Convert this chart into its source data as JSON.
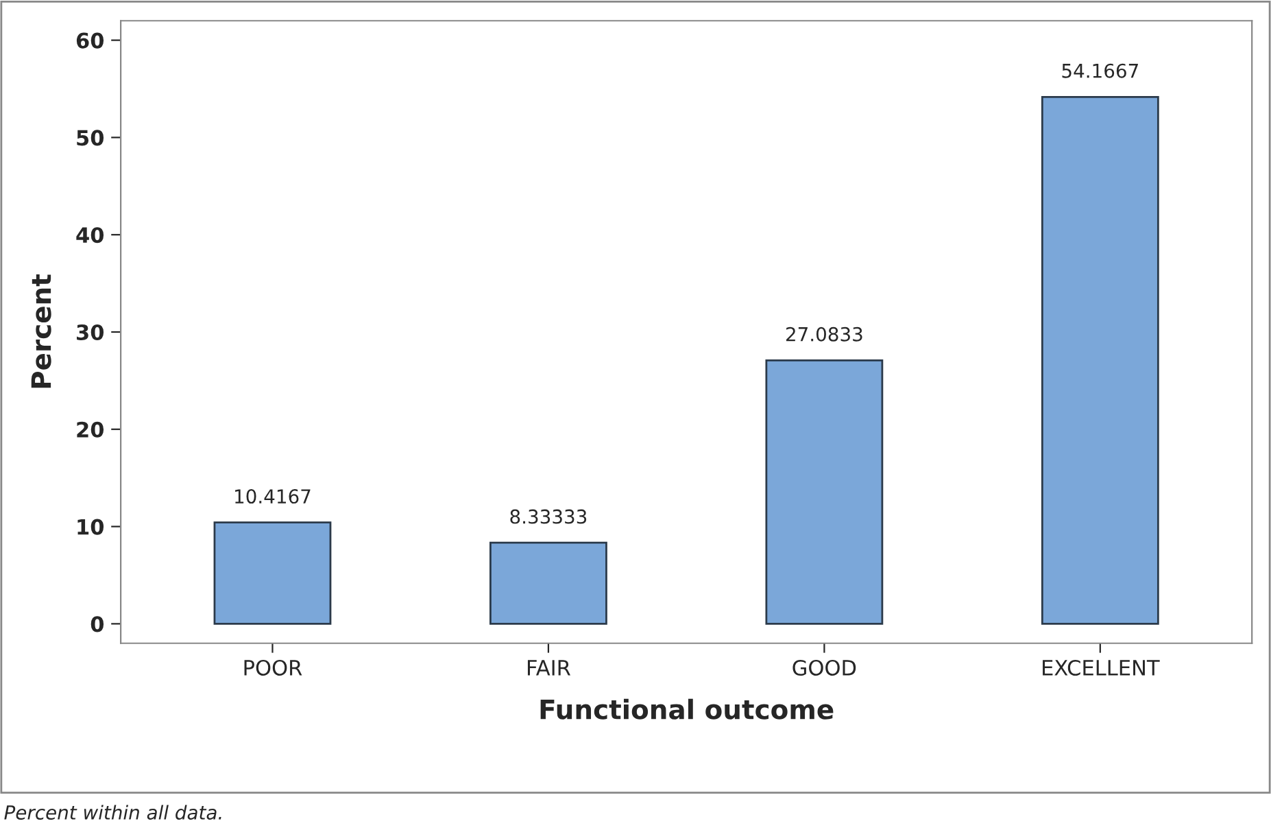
{
  "chart_data": {
    "type": "bar",
    "xlabel": "Functional outcome",
    "ylabel": "Percent",
    "categories": [
      "POOR",
      "FAIR",
      "GOOD",
      "EXCELLENT"
    ],
    "values": [
      10.4167,
      8.33333,
      27.0833,
      54.1667
    ],
    "color": "#7ba7d9",
    "ylim": [
      -2,
      62
    ],
    "yticks": [
      0,
      10,
      20,
      30,
      40,
      50,
      60
    ],
    "data_labels": true,
    "grid": false,
    "legend": false,
    "annotations": [
      "Percent within all data."
    ]
  }
}
